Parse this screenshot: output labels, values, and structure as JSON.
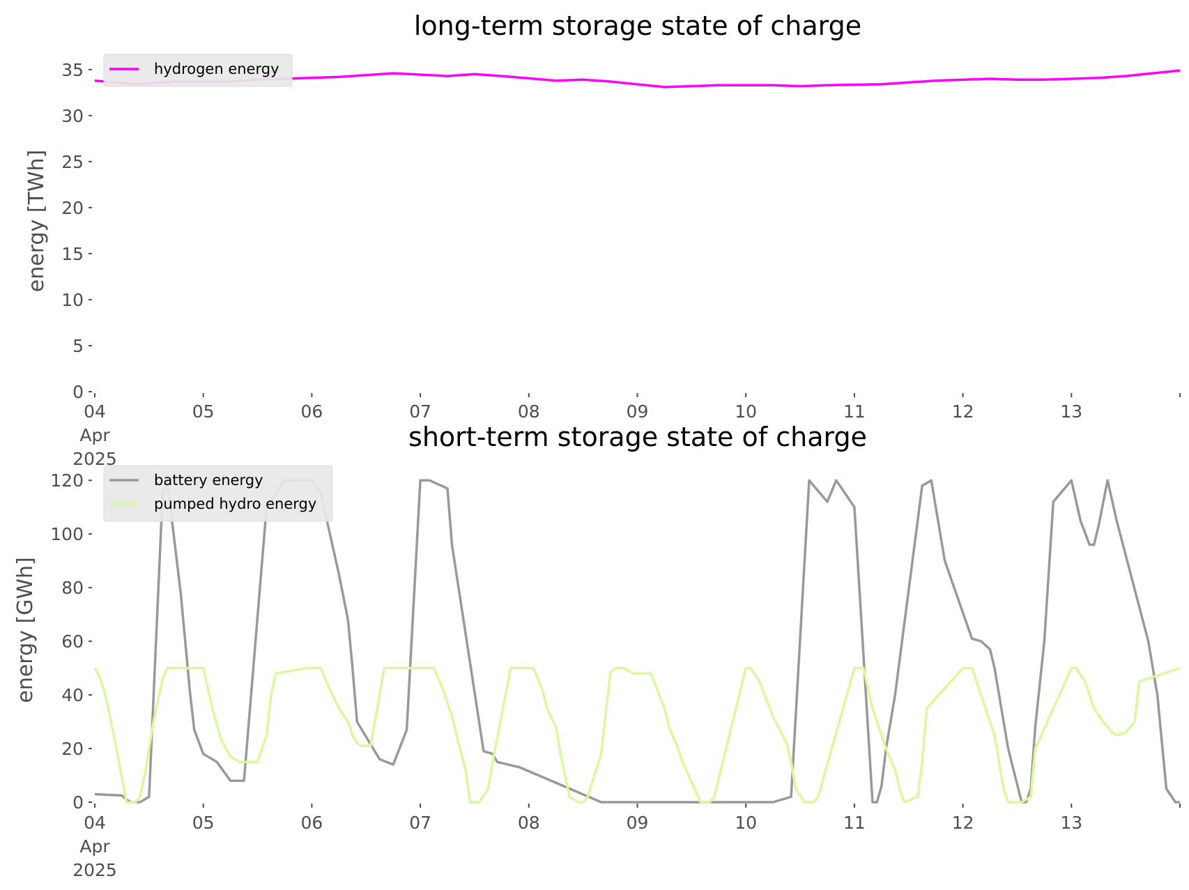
{
  "chart_data": [
    {
      "type": "line",
      "title": "long-term storage state of charge",
      "ylabel": "energy [TWh]",
      "xlabel": "",
      "xlim": [
        "2025-04-04",
        "2025-04-14"
      ],
      "ylim": [
        0,
        36.5
      ],
      "y_ticks": [
        0,
        5,
        10,
        15,
        20,
        25,
        30,
        35
      ],
      "x_ticks": [
        {
          "label": "04",
          "sub": [
            "Apr",
            "2025"
          ]
        },
        {
          "label": "05"
        },
        {
          "label": "06"
        },
        {
          "label": "07"
        },
        {
          "label": "08"
        },
        {
          "label": "09"
        },
        {
          "label": "10"
        },
        {
          "label": "11"
        },
        {
          "label": "12"
        },
        {
          "label": "13"
        },
        {
          "label": ""
        }
      ],
      "grid": false,
      "legend_position": "upper-left",
      "series": [
        {
          "name": "hydrogen energy",
          "color": "#ff00ff",
          "x": [
            "2025-04-04 00:00",
            "2025-04-04 09:00",
            "2025-04-04 18:00",
            "2025-04-05 06:00",
            "2025-04-05 12:00",
            "2025-04-05 18:00",
            "2025-04-06 06:00",
            "2025-04-06 12:00",
            "2025-04-06 18:00",
            "2025-04-07 06:00",
            "2025-04-07 12:00",
            "2025-04-07 18:00",
            "2025-04-08 06:00",
            "2025-04-08 12:00",
            "2025-04-08 18:00",
            "2025-04-09 06:00",
            "2025-04-09 12:00",
            "2025-04-09 18:00",
            "2025-04-10 06:00",
            "2025-04-10 12:00",
            "2025-04-10 18:00",
            "2025-04-11 06:00",
            "2025-04-11 12:00",
            "2025-04-11 18:00",
            "2025-04-12 06:00",
            "2025-04-12 12:00",
            "2025-04-12 18:00",
            "2025-04-13 06:00",
            "2025-04-13 12:00",
            "2025-04-13 18:00",
            "2025-04-14 00:00"
          ],
          "y": [
            33.8,
            33.4,
            33.7,
            33.7,
            33.9,
            34.0,
            34.2,
            34.4,
            34.6,
            34.3,
            34.5,
            34.3,
            33.8,
            33.9,
            33.7,
            33.1,
            33.2,
            33.3,
            33.3,
            33.2,
            33.3,
            33.4,
            33.6,
            33.8,
            34.0,
            33.9,
            33.9,
            34.1,
            34.3,
            34.6,
            34.9
          ]
        }
      ]
    },
    {
      "type": "line",
      "title": "short-term storage state of charge",
      "ylabel": "energy [GWh]",
      "xlabel": "",
      "xlim": [
        "2025-04-04",
        "2025-04-14"
      ],
      "ylim": [
        0,
        125
      ],
      "y_ticks": [
        0,
        20,
        40,
        60,
        80,
        100,
        120
      ],
      "x_ticks": [
        {
          "label": "04",
          "sub": [
            "Apr",
            "2025"
          ]
        },
        {
          "label": "05"
        },
        {
          "label": "06"
        },
        {
          "label": "07"
        },
        {
          "label": "08"
        },
        {
          "label": "09"
        },
        {
          "label": "10"
        },
        {
          "label": "11"
        },
        {
          "label": "12"
        },
        {
          "label": "13"
        },
        {
          "label": ""
        }
      ],
      "grid": false,
      "legend_position": "upper-left",
      "series": [
        {
          "name": "battery energy",
          "color": "#999999",
          "x": [
            "2025-04-04 00:00",
            "2025-04-04 06:00",
            "2025-04-04 07:00",
            "2025-04-04 08:00",
            "2025-04-04 10:00",
            "2025-04-04 12:00",
            "2025-04-04 15:00",
            "2025-04-04 16:00",
            "2025-04-04 19:00",
            "2025-04-04 21:00",
            "2025-04-04 22:00",
            "2025-04-05 00:00",
            "2025-04-05 03:00",
            "2025-04-05 06:00",
            "2025-04-05 09:00",
            "2025-04-05 14:00",
            "2025-04-05 18:00",
            "2025-04-06 00:00",
            "2025-04-06 02:00",
            "2025-04-06 04:00",
            "2025-04-06 06:00",
            "2025-04-06 08:00",
            "2025-04-06 09:00",
            "2025-04-06 10:00",
            "2025-04-06 15:00",
            "2025-04-06 18:00",
            "2025-04-06 21:00",
            "2025-04-07 00:00",
            "2025-04-07 02:00",
            "2025-04-07 06:00",
            "2025-04-07 07:00",
            "2025-04-07 14:00",
            "2025-04-07 16:00",
            "2025-04-07 17:00",
            "2025-04-07 22:00",
            "2025-04-08 16:00",
            "2025-04-08 18:00",
            "2025-04-08 21:00",
            "2025-04-09 03:00",
            "2025-04-09 16:00",
            "2025-04-09 18:00",
            "2025-04-09 21:00",
            "2025-04-10 00:00",
            "2025-04-10 04:00",
            "2025-04-10 06:00",
            "2025-04-10 10:00",
            "2025-04-10 14:00",
            "2025-04-10 18:00",
            "2025-04-10 20:00",
            "2025-04-11 00:00",
            "2025-04-11 04:00",
            "2025-04-11 05:00",
            "2025-04-11 06:00",
            "2025-04-11 07:00",
            "2025-04-11 09:00",
            "2025-04-11 15:00",
            "2025-04-11 17:00",
            "2025-04-11 20:00",
            "2025-04-12 02:00",
            "2025-04-12 04:00",
            "2025-04-12 06:00",
            "2025-04-12 07:00",
            "2025-04-12 08:00",
            "2025-04-12 10:00",
            "2025-04-12 13:00",
            "2025-04-12 14:00",
            "2025-04-12 15:00",
            "2025-04-12 16:00",
            "2025-04-12 18:00",
            "2025-04-12 20:00",
            "2025-04-13 00:00",
            "2025-04-13 02:00",
            "2025-04-13 04:00",
            "2025-04-13 05:00",
            "2025-04-13 06:00",
            "2025-04-13 08:00",
            "2025-04-13 10:00",
            "2025-04-13 17:00",
            "2025-04-13 19:00",
            "2025-04-13 21:00",
            "2025-04-13 23:00",
            "2025-04-14 00:00"
          ],
          "y": [
            3,
            2.5,
            1,
            0,
            0,
            2,
            115,
            120,
            78,
            42,
            27,
            18,
            15,
            8,
            8,
            110,
            120,
            120,
            115,
            100,
            85,
            68,
            50,
            30,
            16,
            14,
            27,
            120,
            120,
            117,
            96,
            19,
            18,
            15,
            13,
            0,
            0,
            0,
            0,
            0,
            0,
            0,
            0,
            0,
            0,
            2,
            120,
            112,
            120,
            110,
            0,
            0,
            6,
            20,
            40,
            118,
            120,
            90,
            61,
            60,
            57,
            50,
            40,
            20,
            0,
            0,
            5,
            28,
            60,
            112,
            120,
            105,
            96,
            96,
            103,
            120,
            105,
            60,
            40,
            5,
            0,
            0
          ]
        },
        {
          "name": "pumped hydro energy",
          "color": "#d9f99d",
          "x": [
            "2025-04-04 00:00",
            "2025-04-04 01:00",
            "2025-04-04 02:00",
            "2025-04-04 03:00",
            "2025-04-04 05:00",
            "2025-04-04 07:00",
            "2025-04-04 09:00",
            "2025-04-04 10:00",
            "2025-04-04 11:00",
            "2025-04-04 13:00",
            "2025-04-04 15:00",
            "2025-04-04 16:00",
            "2025-04-05 00:00",
            "2025-04-05 02:00",
            "2025-04-05 04:00",
            "2025-04-05 06:00",
            "2025-04-05 08:00",
            "2025-04-05 12:00",
            "2025-04-05 14:00",
            "2025-04-05 15:00",
            "2025-04-05 16:00",
            "2025-04-05 23:00",
            "2025-04-06 02:00",
            "2025-04-06 04:00",
            "2025-04-06 06:00",
            "2025-04-06 08:00",
            "2025-04-06 09:00",
            "2025-04-06 10:00",
            "2025-04-06 11:00",
            "2025-04-06 13:00",
            "2025-04-06 15:00",
            "2025-04-06 16:00",
            "2025-04-07 00:00",
            "2025-04-07 03:00",
            "2025-04-07 05:00",
            "2025-04-07 07:00",
            "2025-04-07 08:00",
            "2025-04-07 10:00",
            "2025-04-07 11:00",
            "2025-04-07 13:00",
            "2025-04-07 15:00",
            "2025-04-07 16:00",
            "2025-04-07 20:00",
            "2025-04-08 01:00",
            "2025-04-08 03:00",
            "2025-04-08 04:00",
            "2025-04-08 06:00",
            "2025-04-08 07:00",
            "2025-04-08 09:00",
            "2025-04-08 11:00",
            "2025-04-08 12:00",
            "2025-04-08 13:00",
            "2025-04-08 16:00",
            "2025-04-08 18:00",
            "2025-04-08 19:00",
            "2025-04-08 21:00",
            "2025-04-08 23:00",
            "2025-04-09 00:00",
            "2025-04-09 03:00",
            "2025-04-09 06:00",
            "2025-04-09 07:00",
            "2025-04-09 09:00",
            "2025-04-09 10:00",
            "2025-04-09 14:00",
            "2025-04-09 16:00",
            "2025-04-09 17:00",
            "2025-04-10 00:00",
            "2025-04-10 01:00",
            "2025-04-10 03:00",
            "2025-04-10 06:00",
            "2025-04-10 09:00",
            "2025-04-10 10:00",
            "2025-04-10 11:00",
            "2025-04-10 13:00",
            "2025-04-10 15:00",
            "2025-04-10 16:00",
            "2025-04-11 00:00",
            "2025-04-11 02:00",
            "2025-04-11 04:00",
            "2025-04-11 07:00",
            "2025-04-11 09:00",
            "2025-04-11 10:00",
            "2025-04-11 11:00",
            "2025-04-11 14:00",
            "2025-04-11 15:00",
            "2025-04-11 16:00",
            "2025-04-12 00:00",
            "2025-04-12 02:00",
            "2025-04-12 04:00",
            "2025-04-12 07:00",
            "2025-04-12 08:00",
            "2025-04-12 09:00",
            "2025-04-12 10:00",
            "2025-04-12 13:00",
            "2025-04-12 15:00",
            "2025-04-12 16:00",
            "2025-04-13 00:00",
            "2025-04-13 01:00",
            "2025-04-13 03:00",
            "2025-04-13 05:00",
            "2025-04-13 07:00",
            "2025-04-13 09:00",
            "2025-04-13 10:00",
            "2025-04-13 12:00",
            "2025-04-13 14:00",
            "2025-04-13 15:00",
            "2025-04-14 00:00"
          ],
          "y": [
            50,
            47,
            42,
            35,
            18,
            0,
            0,
            2,
            10,
            30,
            46,
            50,
            50,
            35,
            23,
            17,
            15,
            15,
            25,
            40,
            48,
            50,
            50,
            42,
            35,
            30,
            25,
            22,
            21,
            21,
            40,
            50,
            50,
            50,
            42,
            32,
            25,
            12,
            0,
            0,
            5,
            15,
            50,
            50,
            42,
            35,
            28,
            18,
            2,
            0,
            0,
            2,
            18,
            48,
            50,
            50,
            48,
            48,
            48,
            35,
            28,
            20,
            15,
            0,
            0,
            2,
            50,
            50,
            45,
            32,
            22,
            15,
            5,
            0,
            0,
            2,
            50,
            50,
            35,
            20,
            12,
            5,
            0,
            2,
            15,
            35,
            50,
            50,
            40,
            25,
            15,
            5,
            0,
            0,
            2,
            20,
            50,
            50,
            45,
            35,
            30,
            26,
            25,
            26,
            30,
            45,
            50
          ]
        }
      ]
    }
  ]
}
